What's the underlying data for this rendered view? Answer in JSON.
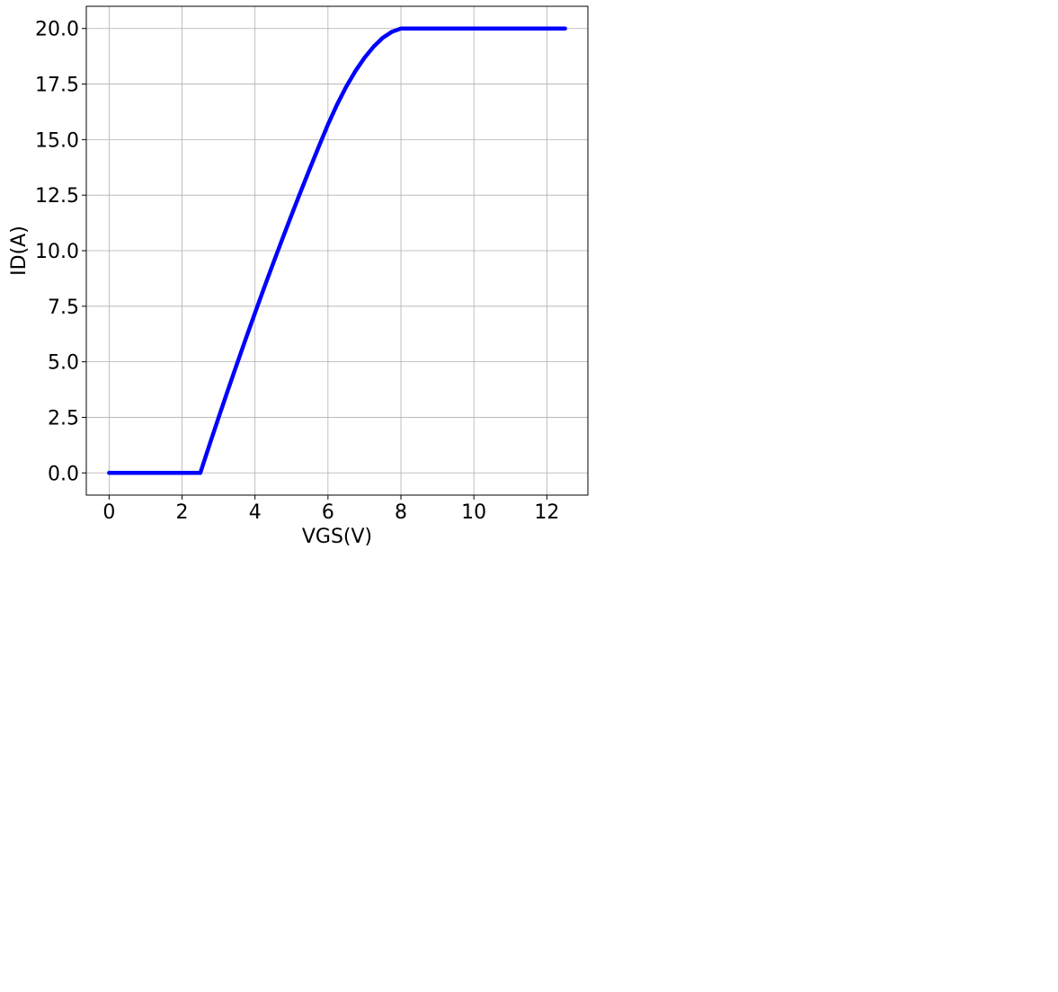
{
  "chart_data": {
    "type": "line",
    "title": "",
    "xlabel": "VGS(V)",
    "ylabel": "ID(A)",
    "xlim": [
      -0.625,
      13.125
    ],
    "ylim": [
      -1.0,
      21.0
    ],
    "x_ticks": [
      0,
      2,
      4,
      6,
      8,
      10,
      12
    ],
    "x_tick_labels": [
      "0",
      "2",
      "4",
      "6",
      "8",
      "10",
      "12"
    ],
    "y_ticks": [
      0,
      2.5,
      5,
      7.5,
      10,
      12.5,
      15,
      17.5,
      20
    ],
    "y_tick_labels": [
      "0.0",
      "2.5",
      "5.0",
      "7.5",
      "10.0",
      "12.5",
      "15.0",
      "17.5",
      "20.0"
    ],
    "grid": true,
    "legend": "none",
    "series": [
      {
        "color": "#0000ff",
        "x": [
          0,
          0.5,
          1.0,
          1.5,
          2.0,
          2.5,
          2.75,
          3.0,
          3.25,
          3.5,
          3.75,
          4.0,
          4.25,
          4.5,
          4.75,
          5.0,
          5.25,
          5.5,
          5.75,
          6.0,
          6.25,
          6.5,
          6.75,
          7.0,
          7.25,
          7.5,
          7.75,
          8.0,
          8.5,
          9.0,
          9.5,
          10.0,
          10.5,
          11.0,
          11.5,
          12.0,
          12.5
        ],
        "y": [
          0,
          0,
          0,
          0,
          0,
          0,
          1.25,
          2.48,
          3.69,
          4.88,
          6.05,
          7.2,
          8.33,
          9.44,
          10.53,
          11.6,
          12.65,
          13.68,
          14.69,
          15.68,
          16.58,
          17.38,
          18.08,
          18.68,
          19.18,
          19.58,
          19.85,
          20.0,
          20.0,
          20.0,
          20.0,
          20.0,
          20.0,
          20.0,
          20.0,
          20.0,
          20.0
        ]
      }
    ]
  }
}
